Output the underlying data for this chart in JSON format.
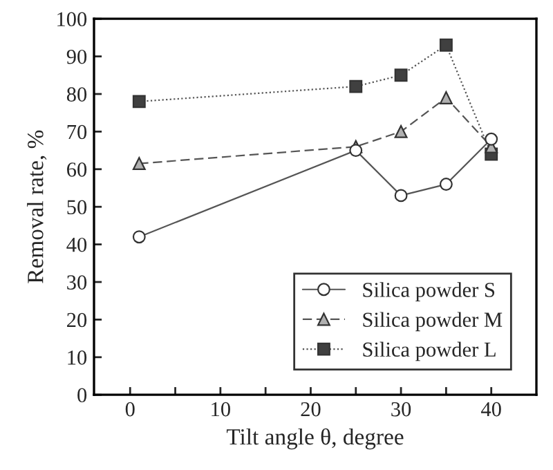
{
  "chart_data": {
    "type": "line",
    "xlabel": "Tilt angle θ, degree",
    "ylabel": "Removal rate, %",
    "xlim": [
      -4,
      45
    ],
    "ylim": [
      0,
      100
    ],
    "xticks": [
      0,
      {
        "value": 5,
        "label": null
      },
      10,
      {
        "value": 15,
        "label": null
      },
      20,
      {
        "value": 25,
        "label": null
      },
      30,
      {
        "value": 35,
        "label": null
      },
      40
    ],
    "yticks": [
      0,
      10,
      20,
      30,
      40,
      50,
      60,
      70,
      80,
      90,
      100
    ],
    "grid": false,
    "legend": "bottom right",
    "series": [
      {
        "name": "Silica powder S",
        "color": "#ffffff",
        "marker": "circle",
        "line_style": "solid",
        "x": [
          1,
          25,
          30,
          35,
          40
        ],
        "values": [
          42,
          65,
          53,
          56,
          68
        ]
      },
      {
        "name": "Silica powder M",
        "color": "#b0b0b0",
        "marker": "triangle",
        "line_style": "dashed",
        "x": [
          1,
          25,
          30,
          35,
          40
        ],
        "values": [
          61.5,
          66,
          70,
          79,
          66
        ]
      },
      {
        "name": "Silica powder L",
        "color": "#404040",
        "marker": "square",
        "line_style": "dotted",
        "x": [
          1,
          25,
          30,
          35,
          40
        ],
        "values": [
          78,
          82,
          85,
          93,
          64
        ]
      }
    ]
  }
}
